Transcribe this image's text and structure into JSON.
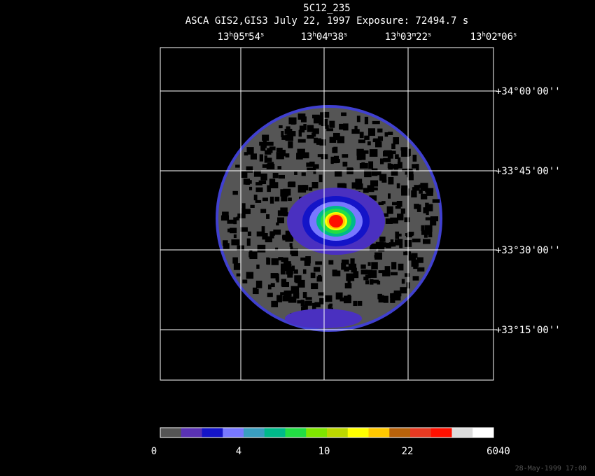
{
  "title": "5C12_235",
  "subtitle": "ASCA GIS2,GIS3 July 22, 1997 Exposure: 72494.7 s",
  "ra_labels": [
    [
      "13",
      "h",
      "05",
      "m",
      "54",
      "s"
    ],
    [
      "13",
      "h",
      "04",
      "m",
      "38",
      "s"
    ],
    [
      "13",
      "h",
      "03",
      "m",
      "22",
      "s"
    ],
    [
      "13",
      "h",
      "02",
      "m",
      "06",
      "s"
    ]
  ],
  "dec_labels": [
    "+34°00'00''",
    "+33°45'00''",
    "+33°30'00''",
    "+33°15'00''"
  ],
  "colorbar": {
    "colors": [
      "#555555",
      "#5a32b4",
      "#1414c8",
      "#7878ff",
      "#3a9ec0",
      "#00b98a",
      "#22dd44",
      "#7fe600",
      "#bcd800",
      "#ffff00",
      "#ffc800",
      "#b8620a",
      "#e83a22",
      "#ff1000",
      "#dcdcdc",
      "#ffffff"
    ],
    "labels": [
      "0",
      "4",
      "10",
      "22",
      "6040"
    ]
  },
  "timestamp": "28-May-1999 17:00"
}
